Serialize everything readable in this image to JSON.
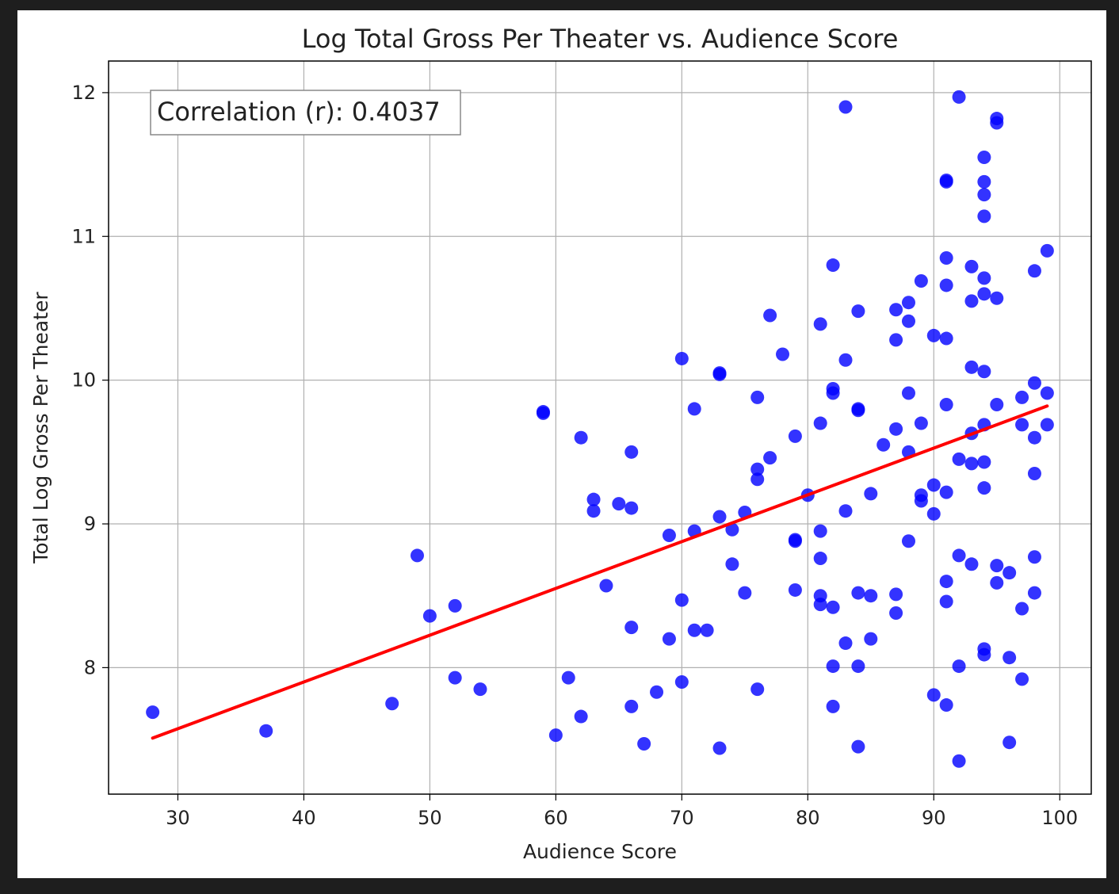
{
  "chart_data": {
    "type": "scatter",
    "title": "Log Total Gross Per Theater vs. Audience Score",
    "xlabel": "Audience Score",
    "ylabel": "Total Log Gross Per Theater",
    "xlim": [
      24.5,
      102.5
    ],
    "ylim": [
      7.12,
      12.22
    ],
    "xticks": [
      30,
      40,
      50,
      60,
      70,
      80,
      90,
      100
    ],
    "yticks": [
      8,
      9,
      10,
      11,
      12
    ],
    "grid": true,
    "annotation": "Correlation (r): 0.4037",
    "point_color": "#0000ff",
    "trend_color": "#ff0000",
    "trendline": {
      "x": [
        28,
        99
      ],
      "y": [
        7.51,
        9.82
      ]
    },
    "points": [
      [
        28,
        7.69
      ],
      [
        37,
        7.56
      ],
      [
        47,
        7.75
      ],
      [
        49,
        8.78
      ],
      [
        50,
        8.36
      ],
      [
        52,
        8.43
      ],
      [
        52,
        7.93
      ],
      [
        54,
        7.85
      ],
      [
        59,
        9.77
      ],
      [
        59,
        9.78
      ],
      [
        60,
        7.53
      ],
      [
        61,
        7.93
      ],
      [
        62,
        9.6
      ],
      [
        62,
        7.66
      ],
      [
        63,
        9.17
      ],
      [
        63,
        9.09
      ],
      [
        64,
        8.57
      ],
      [
        65,
        9.14
      ],
      [
        66,
        9.5
      ],
      [
        66,
        9.11
      ],
      [
        66,
        8.28
      ],
      [
        66,
        7.73
      ],
      [
        67,
        7.47
      ],
      [
        68,
        7.83
      ],
      [
        69,
        8.92
      ],
      [
        69,
        8.2
      ],
      [
        70,
        10.15
      ],
      [
        70,
        8.47
      ],
      [
        70,
        7.9
      ],
      [
        71,
        9.8
      ],
      [
        71,
        8.95
      ],
      [
        71,
        8.26
      ],
      [
        72,
        8.26
      ],
      [
        73,
        10.04
      ],
      [
        73,
        10.05
      ],
      [
        73,
        9.05
      ],
      [
        73,
        7.44
      ],
      [
        74,
        8.96
      ],
      [
        74,
        8.72
      ],
      [
        75,
        9.08
      ],
      [
        75,
        8.52
      ],
      [
        76,
        9.88
      ],
      [
        76,
        9.38
      ],
      [
        76,
        9.31
      ],
      [
        76,
        7.85
      ],
      [
        77,
        10.45
      ],
      [
        77,
        9.46
      ],
      [
        78,
        10.18
      ],
      [
        79,
        9.61
      ],
      [
        79,
        8.89
      ],
      [
        79,
        8.88
      ],
      [
        79,
        8.54
      ],
      [
        80,
        9.2
      ],
      [
        81,
        10.39
      ],
      [
        81,
        9.7
      ],
      [
        81,
        8.95
      ],
      [
        81,
        8.76
      ],
      [
        81,
        8.5
      ],
      [
        81,
        8.44
      ],
      [
        82,
        10.8
      ],
      [
        82,
        9.94
      ],
      [
        82,
        9.91
      ],
      [
        82,
        8.42
      ],
      [
        82,
        8.01
      ],
      [
        82,
        7.73
      ],
      [
        83,
        11.9
      ],
      [
        83,
        10.14
      ],
      [
        83,
        9.09
      ],
      [
        83,
        8.17
      ],
      [
        84,
        10.48
      ],
      [
        84,
        9.8
      ],
      [
        84,
        9.79
      ],
      [
        84,
        8.52
      ],
      [
        84,
        8.01
      ],
      [
        84,
        7.45
      ],
      [
        85,
        9.21
      ],
      [
        85,
        8.5
      ],
      [
        85,
        8.2
      ],
      [
        86,
        9.55
      ],
      [
        87,
        10.49
      ],
      [
        87,
        10.28
      ],
      [
        87,
        9.66
      ],
      [
        87,
        8.51
      ],
      [
        87,
        8.38
      ],
      [
        88,
        10.54
      ],
      [
        88,
        10.41
      ],
      [
        88,
        9.91
      ],
      [
        88,
        9.5
      ],
      [
        88,
        8.88
      ],
      [
        89,
        10.69
      ],
      [
        89,
        9.7
      ],
      [
        89,
        9.2
      ],
      [
        89,
        9.16
      ],
      [
        90,
        10.31
      ],
      [
        90,
        9.27
      ],
      [
        90,
        9.07
      ],
      [
        90,
        7.81
      ],
      [
        91,
        11.38
      ],
      [
        91,
        11.39
      ],
      [
        91,
        10.85
      ],
      [
        91,
        10.66
      ],
      [
        91,
        10.29
      ],
      [
        91,
        9.83
      ],
      [
        91,
        9.22
      ],
      [
        91,
        8.6
      ],
      [
        91,
        8.46
      ],
      [
        91,
        7.74
      ],
      [
        92,
        11.97
      ],
      [
        92,
        9.45
      ],
      [
        92,
        8.78
      ],
      [
        92,
        8.01
      ],
      [
        92,
        7.35
      ],
      [
        93,
        10.79
      ],
      [
        93,
        10.55
      ],
      [
        93,
        10.09
      ],
      [
        93,
        9.63
      ],
      [
        93,
        9.42
      ],
      [
        93,
        8.72
      ],
      [
        94,
        11.55
      ],
      [
        94,
        11.38
      ],
      [
        94,
        11.29
      ],
      [
        94,
        11.14
      ],
      [
        94,
        10.71
      ],
      [
        94,
        10.6
      ],
      [
        94,
        10.06
      ],
      [
        94,
        9.69
      ],
      [
        94,
        9.43
      ],
      [
        94,
        9.25
      ],
      [
        94,
        8.13
      ],
      [
        94,
        8.09
      ],
      [
        95,
        11.82
      ],
      [
        95,
        11.79
      ],
      [
        95,
        10.57
      ],
      [
        95,
        9.83
      ],
      [
        95,
        8.71
      ],
      [
        95,
        8.59
      ],
      [
        96,
        8.66
      ],
      [
        96,
        8.07
      ],
      [
        96,
        7.48
      ],
      [
        97,
        9.88
      ],
      [
        97,
        9.69
      ],
      [
        97,
        8.41
      ],
      [
        97,
        7.92
      ],
      [
        98,
        10.76
      ],
      [
        98,
        9.98
      ],
      [
        98,
        9.6
      ],
      [
        98,
        9.35
      ],
      [
        98,
        8.77
      ],
      [
        98,
        8.52
      ],
      [
        99,
        10.9
      ],
      [
        99,
        9.91
      ],
      [
        99,
        9.69
      ]
    ]
  }
}
